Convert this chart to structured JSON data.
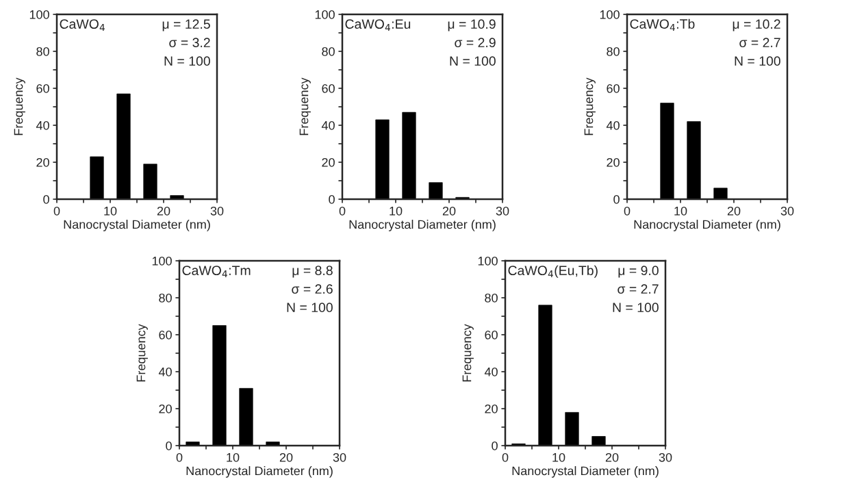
{
  "chart_data": [
    {
      "type": "histogram",
      "title": "CaWO$_{4}$",
      "xlabel": "Nanocrystal Diameter (nm)",
      "ylabel": "Frequency",
      "bins": [
        0,
        5,
        10,
        15,
        20,
        25,
        30
      ],
      "values": [
        0,
        23,
        57,
        19,
        2,
        0
      ],
      "color": "#000000",
      "xlim": [
        0,
        30
      ],
      "ylim": [
        0,
        100
      ],
      "xticks": [
        0,
        {
          "value": 5,
          "label": null
        },
        10,
        {
          "value": 15,
          "label": null
        },
        20,
        {
          "value": 25,
          "label": null
        },
        30
      ],
      "yticks": [
        0,
        {
          "value": 10,
          "label": null
        },
        20,
        {
          "value": 30,
          "label": null
        },
        40,
        {
          "value": 50,
          "label": null
        },
        60,
        {
          "value": 70,
          "label": null
        },
        80,
        {
          "value": 90,
          "label": null
        },
        100
      ],
      "annotations": [
        "μ = 12.5",
        "σ = 3.2",
        "N = 100"
      ],
      "grid": false,
      "legend": false
    },
    {
      "type": "histogram",
      "title": "CaWO$_{4}$:Eu",
      "xlabel": "Nanocrystal Diameter (nm)",
      "ylabel": "Frequency",
      "bins": [
        0,
        5,
        10,
        15,
        20,
        25,
        30
      ],
      "values": [
        0,
        43,
        47,
        9,
        1,
        0
      ],
      "color": "#000000",
      "xlim": [
        0,
        30
      ],
      "ylim": [
        0,
        100
      ],
      "xticks": [
        0,
        {
          "value": 5,
          "label": null
        },
        10,
        {
          "value": 15,
          "label": null
        },
        20,
        {
          "value": 25,
          "label": null
        },
        30
      ],
      "yticks": [
        0,
        {
          "value": 10,
          "label": null
        },
        20,
        {
          "value": 30,
          "label": null
        },
        40,
        {
          "value": 50,
          "label": null
        },
        60,
        {
          "value": 70,
          "label": null
        },
        80,
        {
          "value": 90,
          "label": null
        },
        100
      ],
      "annotations": [
        "μ = 10.9",
        "σ = 2.9",
        "N = 100"
      ],
      "grid": false,
      "legend": false
    },
    {
      "type": "histogram",
      "title": "CaWO$_{4}$:Tb",
      "xlabel": "Nanocrystal Diameter (nm)",
      "ylabel": "Frequency",
      "bins": [
        0,
        5,
        10,
        15,
        20,
        25,
        30
      ],
      "values": [
        0,
        52,
        42,
        6,
        0,
        0
      ],
      "color": "#000000",
      "xlim": [
        0,
        30
      ],
      "ylim": [
        0,
        100
      ],
      "xticks": [
        0,
        {
          "value": 5,
          "label": null
        },
        10,
        {
          "value": 15,
          "label": null
        },
        20,
        {
          "value": 25,
          "label": null
        },
        30
      ],
      "yticks": [
        0,
        {
          "value": 10,
          "label": null
        },
        20,
        {
          "value": 30,
          "label": null
        },
        40,
        {
          "value": 50,
          "label": null
        },
        60,
        {
          "value": 70,
          "label": null
        },
        80,
        {
          "value": 90,
          "label": null
        },
        100
      ],
      "annotations": [
        "μ = 10.2",
        "σ = 2.7",
        "N = 100"
      ],
      "grid": false,
      "legend": false
    },
    {
      "type": "histogram",
      "title": "CaWO$_{4}$:Tm",
      "xlabel": "Nanocrystal Diameter (nm)",
      "ylabel": "Frequency",
      "bins": [
        0,
        5,
        10,
        15,
        20,
        25,
        30
      ],
      "values": [
        2,
        65,
        31,
        2,
        0,
        0
      ],
      "color": "#000000",
      "xlim": [
        0,
        30
      ],
      "ylim": [
        0,
        100
      ],
      "xticks": [
        0,
        {
          "value": 5,
          "label": null
        },
        10,
        {
          "value": 15,
          "label": null
        },
        20,
        {
          "value": 25,
          "label": null
        },
        30
      ],
      "yticks": [
        0,
        {
          "value": 10,
          "label": null
        },
        20,
        {
          "value": 30,
          "label": null
        },
        40,
        {
          "value": 50,
          "label": null
        },
        60,
        {
          "value": 70,
          "label": null
        },
        80,
        {
          "value": 90,
          "label": null
        },
        100
      ],
      "annotations": [
        "μ = 8.8",
        "σ = 2.6",
        "N = 100"
      ],
      "grid": false,
      "legend": false
    },
    {
      "type": "histogram",
      "title": "CaWO$_{4}$(Eu,Tb)",
      "xlabel": "Nanocrystal Diameter (nm)",
      "ylabel": "Frequency",
      "bins": [
        0,
        5,
        10,
        15,
        20,
        25,
        30
      ],
      "values": [
        1,
        76,
        18,
        5,
        0,
        0
      ],
      "color": "#000000",
      "xlim": [
        0,
        30
      ],
      "ylim": [
        0,
        100
      ],
      "xticks": [
        0,
        {
          "value": 5,
          "label": null
        },
        10,
        {
          "value": 15,
          "label": null
        },
        20,
        {
          "value": 25,
          "label": null
        },
        30
      ],
      "yticks": [
        0,
        {
          "value": 10,
          "label": null
        },
        20,
        {
          "value": 30,
          "label": null
        },
        40,
        {
          "value": 50,
          "label": null
        },
        60,
        {
          "value": 70,
          "label": null
        },
        80,
        {
          "value": 90,
          "label": null
        },
        100
      ],
      "annotations": [
        "μ = 9.0",
        "σ = 2.7",
        "N = 100"
      ],
      "grid": false,
      "legend": false
    }
  ]
}
